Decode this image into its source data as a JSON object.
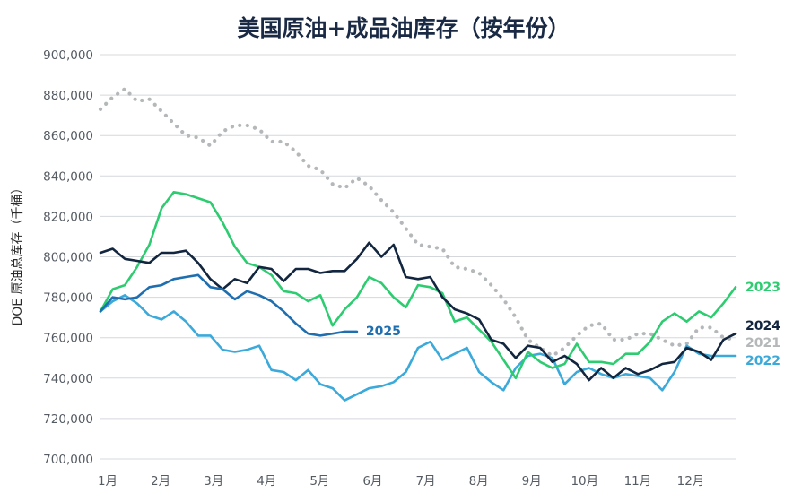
{
  "chart_data": {
    "type": "line",
    "title": "美国原油+成品油库存（按年份）",
    "ylabel": "DOE 原油总库存（千桶）",
    "xlabel": "",
    "x_tick_labels": [
      "1月",
      "2月",
      "3月",
      "4月",
      "5月",
      "6月",
      "7月",
      "8月",
      "9月",
      "10月",
      "11月",
      "12月"
    ],
    "y_tick_labels": [
      "700,000",
      "720,000",
      "740,000",
      "760,000",
      "780,000",
      "800,000",
      "820,000",
      "840,000",
      "860,000",
      "880,000",
      "900,000"
    ],
    "ylim": [
      700000,
      900000
    ],
    "xlim": [
      1,
      53
    ],
    "x_unit": "week",
    "grid": true,
    "series": [
      {
        "name": "2021",
        "color": "#b5b8ba",
        "style": "dotted",
        "x": [
          1,
          2,
          3,
          4,
          5,
          6,
          7,
          8,
          9,
          10,
          11,
          12,
          13,
          14,
          15,
          16,
          17,
          18,
          19,
          20,
          21,
          22,
          23,
          24,
          25,
          26,
          27,
          28,
          29,
          30,
          31,
          32,
          33,
          34,
          35,
          36,
          37,
          38,
          39,
          40,
          41,
          42,
          43,
          44,
          45,
          46,
          47,
          48,
          49,
          50,
          51,
          52,
          53
        ],
        "values": [
          873000,
          879000,
          883000,
          877000,
          878000,
          872000,
          866000,
          860000,
          859000,
          855000,
          862000,
          865000,
          865000,
          863000,
          857000,
          857000,
          852000,
          845000,
          843000,
          836000,
          834000,
          839000,
          835000,
          828000,
          822000,
          814000,
          806000,
          805000,
          804000,
          795000,
          794000,
          792000,
          786000,
          779000,
          770000,
          759000,
          755000,
          751000,
          755000,
          761000,
          766000,
          767000,
          759000,
          759000,
          762000,
          762000,
          759000,
          756000,
          757000,
          765000,
          765000,
          760000,
          759000
        ]
      },
      {
        "name": "2022",
        "color": "#3ba9da",
        "style": "solid",
        "x": [
          1,
          2,
          3,
          4,
          5,
          6,
          7,
          8,
          9,
          10,
          11,
          12,
          13,
          14,
          15,
          16,
          17,
          18,
          19,
          20,
          21,
          22,
          23,
          24,
          25,
          26,
          27,
          28,
          29,
          30,
          31,
          32,
          33,
          34,
          35,
          36,
          37,
          38,
          39,
          40,
          41,
          42,
          43,
          44,
          45,
          46,
          47,
          48,
          49,
          50,
          51,
          52,
          53
        ],
        "values": [
          773000,
          778000,
          781000,
          777000,
          771000,
          769000,
          773000,
          768000,
          761000,
          761000,
          754000,
          753000,
          754000,
          756000,
          744000,
          743000,
          739000,
          744000,
          737000,
          735000,
          729000,
          732000,
          735000,
          736000,
          738000,
          743000,
          755000,
          758000,
          749000,
          752000,
          755000,
          743000,
          738000,
          734000,
          745000,
          751000,
          752000,
          750000,
          737000,
          743000,
          745000,
          742000,
          740000,
          742000,
          741000,
          740000,
          734000,
          743000,
          756000,
          752000,
          751000,
          751000,
          751000
        ]
      },
      {
        "name": "2023",
        "color": "#2ecc71",
        "style": "solid",
        "x": [
          1,
          2,
          3,
          4,
          5,
          6,
          7,
          8,
          9,
          10,
          11,
          12,
          13,
          14,
          15,
          16,
          17,
          18,
          19,
          20,
          21,
          22,
          23,
          24,
          25,
          26,
          27,
          28,
          29,
          30,
          31,
          32,
          33,
          34,
          35,
          36,
          37,
          38,
          39,
          40,
          41,
          42,
          43,
          44,
          45,
          46,
          47,
          48,
          49,
          50,
          51,
          52,
          53
        ],
        "values": [
          773000,
          784000,
          786000,
          795000,
          806000,
          824000,
          832000,
          831000,
          829000,
          827000,
          817000,
          805000,
          797000,
          795000,
          791000,
          783000,
          782000,
          778000,
          781000,
          766000,
          774000,
          780000,
          790000,
          787000,
          780000,
          775000,
          786000,
          785000,
          782000,
          768000,
          770000,
          764000,
          758000,
          749000,
          740000,
          753000,
          748000,
          745000,
          747000,
          757000,
          748000,
          748000,
          747000,
          752000,
          752000,
          758000,
          768000,
          772000,
          768000,
          773000,
          770000,
          777000,
          785000
        ]
      },
      {
        "name": "2024",
        "color": "#13263f",
        "style": "solid",
        "x": [
          1,
          2,
          3,
          4,
          5,
          6,
          7,
          8,
          9,
          10,
          11,
          12,
          13,
          14,
          15,
          16,
          17,
          18,
          19,
          20,
          21,
          22,
          23,
          24,
          25,
          26,
          27,
          28,
          29,
          30,
          31,
          32,
          33,
          34,
          35,
          36,
          37,
          38,
          39,
          40,
          41,
          42,
          43,
          44,
          45,
          46,
          47,
          48,
          49,
          50,
          51,
          52,
          53
        ],
        "values": [
          802000,
          804000,
          799000,
          798000,
          797000,
          802000,
          802000,
          803000,
          797000,
          789000,
          784000,
          789000,
          787000,
          795000,
          794000,
          788000,
          794000,
          794000,
          792000,
          793000,
          793000,
          799000,
          807000,
          800000,
          806000,
          790000,
          789000,
          790000,
          780000,
          774000,
          772000,
          769000,
          759000,
          757000,
          750000,
          756000,
          755000,
          748000,
          751000,
          747000,
          739000,
          745000,
          740000,
          745000,
          742000,
          744000,
          747000,
          748000,
          755000,
          753000,
          749000,
          759000,
          762000
        ]
      },
      {
        "name": "2025",
        "color": "#1f6fb0",
        "style": "solid",
        "x": [
          1,
          2,
          3,
          4,
          5,
          6,
          7,
          8,
          9,
          10,
          11,
          12,
          13,
          14,
          15,
          16,
          17,
          18,
          19,
          20,
          21,
          22
        ],
        "values": [
          773000,
          780000,
          779000,
          780000,
          785000,
          786000,
          789000,
          790000,
          791000,
          785000,
          784000,
          779000,
          783000,
          781000,
          778000,
          773000,
          767000,
          762000,
          761000,
          762000,
          763000,
          763000
        ]
      }
    ],
    "end_labels": [
      "2023",
      "2024",
      "2021",
      "2022"
    ],
    "inline_label": "2025"
  }
}
